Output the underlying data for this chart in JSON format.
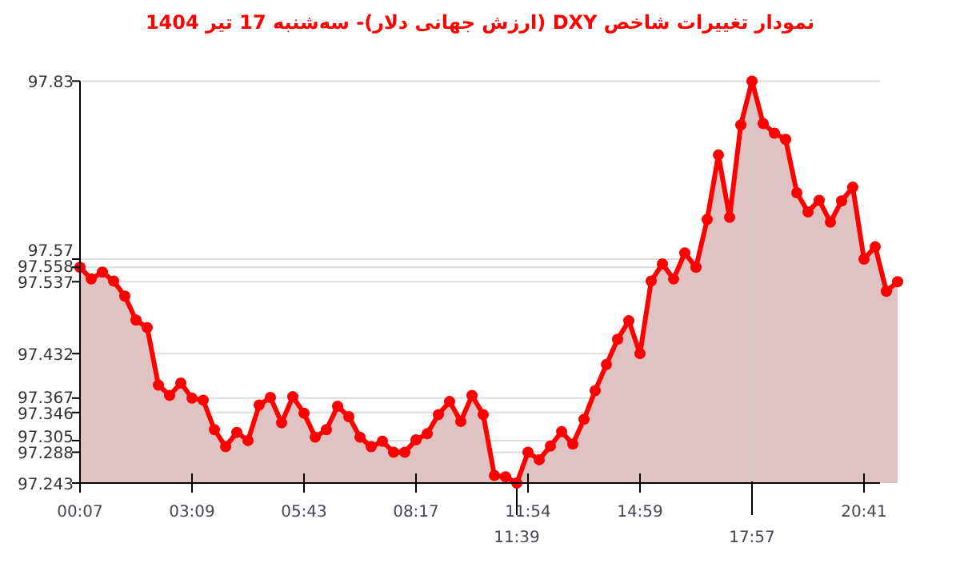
{
  "chart_data": {
    "type": "area",
    "title": "نمودار تغییرات شاخص DXY (ارزش جهانی دلار)- سه‌شنبه  17 تیر 1404",
    "categories": [
      "00:07",
      null,
      null,
      null,
      null,
      null,
      null,
      null,
      null,
      null,
      "03:09",
      null,
      null,
      null,
      null,
      null,
      null,
      null,
      null,
      null,
      "05:43",
      null,
      null,
      null,
      null,
      null,
      null,
      null,
      null,
      null,
      "08:17",
      null,
      null,
      null,
      null,
      null,
      null,
      null,
      null,
      null,
      "11:54",
      null,
      null,
      null,
      null,
      null,
      null,
      null,
      null,
      null,
      "14:59",
      null,
      null,
      null,
      null,
      null,
      null,
      null,
      null,
      null,
      null,
      null,
      null,
      null,
      null,
      null,
      null,
      null,
      null,
      null,
      "20:41",
      null,
      null,
      null
    ],
    "series": [
      {
        "color": "#ff0000",
        "values": [
          97.558,
          97.541,
          97.551,
          97.538,
          97.516,
          97.481,
          97.47,
          97.386,
          97.371,
          97.389,
          97.367,
          97.364,
          97.321,
          97.296,
          97.317,
          97.305,
          97.357,
          97.368,
          97.331,
          97.369,
          97.345,
          97.31,
          97.321,
          97.355,
          97.34,
          97.31,
          97.296,
          97.304,
          97.288,
          97.288,
          97.306,
          97.315,
          97.343,
          97.362,
          97.333,
          97.371,
          97.343,
          97.254,
          97.252,
          97.243,
          97.288,
          97.277,
          97.297,
          97.318,
          97.3,
          97.336,
          97.378,
          97.416,
          97.453,
          97.48,
          97.432,
          97.538,
          97.563,
          97.541,
          97.579,
          97.558,
          97.628,
          97.722,
          97.631,
          97.766,
          97.83,
          97.768,
          97.754,
          97.745,
          97.667,
          97.639,
          97.656,
          97.624,
          97.655,
          97.675,
          97.57,
          97.588,
          97.523,
          97.537
        ]
      }
    ],
    "ylim": [
      97.243,
      97.83
    ],
    "yticks": [
      97.83,
      97.57,
      97.558,
      97.537,
      97.432,
      97.367,
      97.346,
      97.305,
      97.288,
      97.243
    ],
    "grid": "y",
    "marker": "circle",
    "line_style": "solid",
    "annotations": [
      {
        "text": "11:39",
        "y": 97.243
      },
      {
        "text": "17:57",
        "y": 97.83
      }
    ]
  }
}
